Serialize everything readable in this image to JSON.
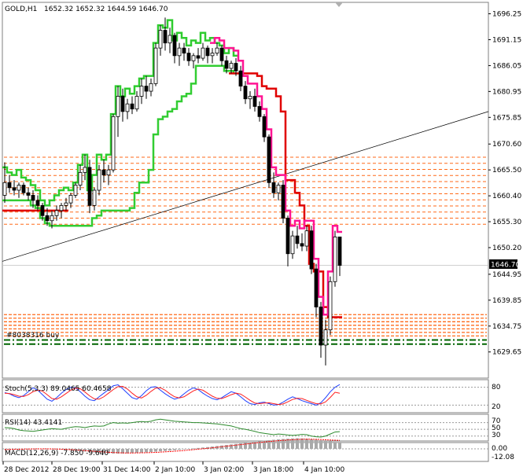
{
  "header": {
    "symbol_tf": "GOLD,H1",
    "ohlc": "1652.32 1652.32 1644.59 1646.70"
  },
  "colors": {
    "bull": "#006400",
    "bear": "#000000",
    "envelope_upper_green": "#2ecc2e",
    "envelope_lower_green": "#32cd32",
    "trail_red": "#e00000",
    "trail_pink": "#ff1493",
    "level_orange": "#ff6a1a",
    "order_green": "#006400",
    "trendline": "#000000",
    "stoch_main": "#1f3fff",
    "stoch_signal": "#ff2020",
    "rsi": "#2e8b2e",
    "macd_hist": "#a9a9a9",
    "macd_signal": "#ff0000"
  },
  "chart_data": {
    "type": "candlestick",
    "price_axis": {
      "ticks": [
        "1696.25",
        "1691.15",
        "1686.05",
        "1680.95",
        "1675.85",
        "1670.60",
        "1665.50",
        "1660.40",
        "1655.30",
        "1650.20",
        "1644.95",
        "1639.85",
        "1634.75",
        "1629.65"
      ],
      "current_price": "1646.70",
      "ylim": [
        1624.5,
        1698.5
      ]
    },
    "time_axis": {
      "ticks": [
        "28 Dec 2012",
        "28 Dec 19:00",
        "31 Dec 14:00",
        "2 Jan 10:00",
        "3 Jan 02:00",
        "3 Jan 18:00",
        "4 Jan 10:00"
      ]
    },
    "ohlc": [
      [
        1660.5,
        1667.0,
        1659.0,
        1663.0
      ],
      [
        1663.0,
        1664.5,
        1661.0,
        1662.0
      ],
      [
        1662.0,
        1663.5,
        1660.5,
        1661.5
      ],
      [
        1661.5,
        1663.0,
        1660.0,
        1662.5
      ],
      [
        1662.5,
        1663.0,
        1660.5,
        1661.0
      ],
      [
        1661.0,
        1662.0,
        1659.5,
        1660.5
      ],
      [
        1660.5,
        1661.5,
        1658.0,
        1659.5
      ],
      [
        1659.5,
        1660.5,
        1657.5,
        1658.5
      ],
      [
        1658.5,
        1659.0,
        1655.5,
        1656.5
      ],
      [
        1656.5,
        1658.0,
        1654.5,
        1655.5
      ],
      [
        1655.5,
        1657.5,
        1654.0,
        1656.5
      ],
      [
        1656.5,
        1658.5,
        1655.5,
        1657.5
      ],
      [
        1657.5,
        1659.0,
        1656.0,
        1658.5
      ],
      [
        1658.5,
        1660.0,
        1657.5,
        1659.0
      ],
      [
        1659.0,
        1661.0,
        1658.0,
        1660.5
      ],
      [
        1660.5,
        1663.0,
        1660.0,
        1662.5
      ],
      [
        1662.5,
        1666.5,
        1661.5,
        1665.0
      ],
      [
        1665.0,
        1668.5,
        1663.5,
        1666.0
      ],
      [
        1666.0,
        1667.5,
        1657.0,
        1658.5
      ],
      [
        1658.5,
        1662.0,
        1657.5,
        1661.5
      ],
      [
        1661.5,
        1666.5,
        1660.5,
        1665.5
      ],
      [
        1665.5,
        1667.5,
        1663.0,
        1664.5
      ],
      [
        1664.5,
        1666.5,
        1662.5,
        1665.5
      ],
      [
        1665.5,
        1676.5,
        1665.0,
        1676.0
      ],
      [
        1676.0,
        1682.0,
        1672.0,
        1680.0
      ],
      [
        1680.0,
        1681.5,
        1675.0,
        1677.0
      ],
      [
        1677.0,
        1679.5,
        1675.5,
        1678.5
      ],
      [
        1678.5,
        1680.0,
        1676.5,
        1677.5
      ],
      [
        1677.5,
        1681.0,
        1677.0,
        1680.0
      ],
      [
        1680.0,
        1683.5,
        1678.5,
        1682.0
      ],
      [
        1682.0,
        1684.0,
        1679.5,
        1681.0
      ],
      [
        1681.0,
        1683.5,
        1680.0,
        1682.5
      ],
      [
        1682.5,
        1690.5,
        1682.0,
        1689.5
      ],
      [
        1689.5,
        1694.0,
        1688.0,
        1693.0
      ],
      [
        1693.0,
        1695.5,
        1689.0,
        1690.5
      ],
      [
        1690.5,
        1693.5,
        1688.5,
        1692.0
      ],
      [
        1692.0,
        1692.5,
        1686.5,
        1688.0
      ],
      [
        1688.0,
        1690.5,
        1686.0,
        1689.5
      ],
      [
        1689.5,
        1690.5,
        1687.0,
        1688.5
      ],
      [
        1688.5,
        1689.5,
        1686.0,
        1687.0
      ],
      [
        1687.0,
        1688.5,
        1685.5,
        1688.0
      ],
      [
        1688.0,
        1689.5,
        1686.5,
        1687.5
      ],
      [
        1687.5,
        1690.5,
        1687.0,
        1689.5
      ],
      [
        1689.5,
        1690.0,
        1686.5,
        1688.0
      ],
      [
        1688.0,
        1689.5,
        1686.5,
        1688.5
      ],
      [
        1688.5,
        1690.5,
        1688.0,
        1689.5
      ],
      [
        1689.5,
        1690.0,
        1686.0,
        1687.0
      ],
      [
        1687.0,
        1688.0,
        1684.5,
        1685.5
      ],
      [
        1685.5,
        1687.0,
        1684.5,
        1686.5
      ],
      [
        1686.5,
        1687.5,
        1684.0,
        1685.0
      ],
      [
        1685.0,
        1686.0,
        1681.0,
        1682.0
      ],
      [
        1682.0,
        1683.0,
        1678.5,
        1679.5
      ],
      [
        1679.5,
        1681.0,
        1677.5,
        1680.0
      ],
      [
        1680.0,
        1681.5,
        1677.0,
        1678.0
      ],
      [
        1678.0,
        1679.0,
        1675.0,
        1676.0
      ],
      [
        1676.0,
        1676.5,
        1671.0,
        1672.0
      ],
      [
        1672.0,
        1672.5,
        1662.0,
        1663.0
      ],
      [
        1663.0,
        1665.0,
        1660.0,
        1661.0
      ],
      [
        1661.0,
        1663.0,
        1659.5,
        1662.5
      ],
      [
        1662.5,
        1663.5,
        1655.0,
        1656.0
      ],
      [
        1656.0,
        1656.5,
        1646.5,
        1649.0
      ],
      [
        1649.0,
        1653.5,
        1648.0,
        1652.5
      ],
      [
        1652.5,
        1654.5,
        1650.0,
        1651.0
      ],
      [
        1651.0,
        1653.0,
        1649.5,
        1650.5
      ],
      [
        1650.5,
        1654.5,
        1649.5,
        1653.5
      ],
      [
        1653.5,
        1654.5,
        1645.0,
        1646.0
      ],
      [
        1646.0,
        1647.0,
        1636.5,
        1638.5
      ],
      [
        1638.5,
        1639.5,
        1628.5,
        1631.0
      ],
      [
        1631.0,
        1636.0,
        1627.0,
        1634.0
      ],
      [
        1634.0,
        1644.5,
        1633.0,
        1643.5
      ],
      [
        1643.5,
        1653.5,
        1642.5,
        1652.3
      ],
      [
        1652.3,
        1652.3,
        1644.6,
        1646.7
      ]
    ],
    "levels_upper": [
      1668.0,
      1666.8,
      1665.6,
      1664.4,
      1663.2,
      1662.0,
      1660.8,
      1659.6,
      1658.4,
      1657.2,
      1656.0,
      1654.8
    ],
    "levels_lower": [
      1637.0,
      1636.3,
      1635.6,
      1634.9,
      1634.2,
      1633.5,
      1632.8
    ],
    "order_lines": [
      1632.0,
      1631.2
    ],
    "order_label": "#8038316 buy",
    "trendline": {
      "from_price": 1647.5,
      "to_price": 1677.0
    },
    "stoch": {
      "label": "Stoch(5,3,3) 89.0465 60.4658",
      "ticks": [
        "80",
        "20"
      ],
      "main": [
        62,
        58,
        50,
        45,
        52,
        65,
        78,
        70,
        55,
        40,
        33,
        45,
        60,
        72,
        80,
        78,
        65,
        50,
        38,
        35,
        48,
        60,
        72,
        85,
        88,
        75,
        60,
        45,
        40,
        52,
        68,
        80,
        82,
        70,
        58,
        48,
        40,
        45,
        58,
        70,
        78,
        72,
        60,
        50,
        42,
        38,
        45,
        55,
        65,
        60,
        48,
        35,
        25,
        22,
        28,
        30,
        25,
        20,
        22,
        30,
        40,
        48,
        42,
        35,
        30,
        25,
        20,
        28,
        45,
        65,
        80,
        89
      ],
      "signal": [
        60,
        59,
        55,
        50,
        49,
        55,
        65,
        70,
        67,
        55,
        42,
        40,
        48,
        59,
        70,
        77,
        75,
        64,
        51,
        41,
        40,
        48,
        60,
        72,
        82,
        83,
        74,
        60,
        48,
        44,
        53,
        66,
        77,
        78,
        70,
        58,
        48,
        44,
        48,
        58,
        68,
        74,
        70,
        60,
        50,
        43,
        42,
        48,
        55,
        60,
        57,
        47,
        36,
        27,
        25,
        27,
        28,
        25,
        22,
        24,
        31,
        39,
        43,
        42,
        36,
        30,
        25,
        24,
        31,
        46,
        63,
        60
      ]
    },
    "rsi": {
      "label": "RSI(14) 43.4141",
      "ticks": [
        "70",
        "50",
        "30"
      ],
      "values": [
        55,
        54,
        52,
        48,
        46,
        45,
        44,
        46,
        48,
        50,
        52,
        51,
        50,
        53,
        56,
        58,
        57,
        55,
        58,
        60,
        59,
        60,
        66,
        70,
        68,
        69,
        68,
        70,
        72,
        73,
        72,
        74,
        78,
        80,
        78,
        76,
        74,
        73,
        72,
        71,
        70,
        70,
        69,
        68,
        67,
        66,
        64,
        62,
        60,
        56,
        52,
        50,
        47,
        44,
        40,
        38,
        36,
        34,
        36,
        35,
        33,
        32,
        33,
        35,
        34,
        30,
        28,
        27,
        30,
        36,
        42,
        43
      ]
    },
    "macd": {
      "label": "MACD(12,26,9) -7.850 -9.640",
      "ticks": [
        "0.00",
        "-12.08"
      ],
      "hist": [
        0.5,
        0.4,
        0.2,
        0.1,
        0.0,
        -0.2,
        -0.3,
        -0.2,
        -0.1,
        0.0,
        0.2,
        0.4,
        0.6,
        0.9,
        1.3,
        1.8,
        2.4,
        3.0,
        3.5,
        4.0,
        4.4,
        4.8,
        5.1,
        5.3,
        5.4,
        5.3,
        5.1,
        4.8,
        4.5,
        4.2,
        3.9,
        3.6,
        3.2,
        2.8,
        2.4,
        2.0,
        1.5,
        1.0,
        0.5,
        0.0,
        -0.5,
        -1.0,
        -1.5,
        -2.0,
        -2.6,
        -3.2,
        -3.8,
        -4.4,
        -5.0,
        -5.6,
        -6.2,
        -6.8,
        -7.4,
        -8.0,
        -8.6,
        -9.2,
        -9.8,
        -10.3,
        -10.8,
        -11.2,
        -11.5,
        -11.8,
        -12.0,
        -11.8,
        -11.5,
        -11.0,
        -10.5,
        -9.8,
        -9.0,
        -8.3,
        -7.9,
        -7.85
      ],
      "signal": [
        0.8,
        0.7,
        0.5,
        0.4,
        0.3,
        0.2,
        0.1,
        0.0,
        0.0,
        0.0,
        0.1,
        0.2,
        0.4,
        0.6,
        0.9,
        1.2,
        1.6,
        2.0,
        2.4,
        2.8,
        3.2,
        3.6,
        3.9,
        4.2,
        4.4,
        4.6,
        4.7,
        4.7,
        4.6,
        4.5,
        4.4,
        4.2,
        4.0,
        3.7,
        3.4,
        3.1,
        2.7,
        2.3,
        1.9,
        1.4,
        0.9,
        0.4,
        -0.1,
        -0.6,
        -1.2,
        -1.8,
        -2.4,
        -3.0,
        -3.6,
        -4.2,
        -4.8,
        -5.4,
        -6.0,
        -6.6,
        -7.2,
        -7.8,
        -8.3,
        -8.8,
        -9.3,
        -9.7,
        -10.1,
        -10.4,
        -10.7,
        -10.9,
        -11.0,
        -10.9,
        -10.8,
        -10.6,
        -10.3,
        -10.0,
        -9.8,
        -9.64
      ]
    }
  }
}
